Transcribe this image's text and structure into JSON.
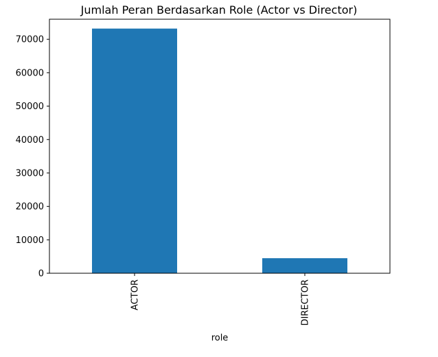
{
  "chart_data": {
    "type": "bar",
    "title": "Jumlah Peran Berdasarkan Role (Actor vs Director)",
    "xlabel": "role",
    "ylabel": "",
    "categories": [
      "ACTOR",
      "DIRECTOR"
    ],
    "values": [
      73200,
      4500
    ],
    "ylim": [
      0,
      76000
    ],
    "yticks": [
      0,
      10000,
      20000,
      30000,
      40000,
      50000,
      60000,
      70000
    ],
    "ytick_labels": [
      "0",
      "10000",
      "20000",
      "30000",
      "40000",
      "50000",
      "60000",
      "70000"
    ],
    "grid": false,
    "legend": "none",
    "bar_color": "#1f77b4"
  }
}
